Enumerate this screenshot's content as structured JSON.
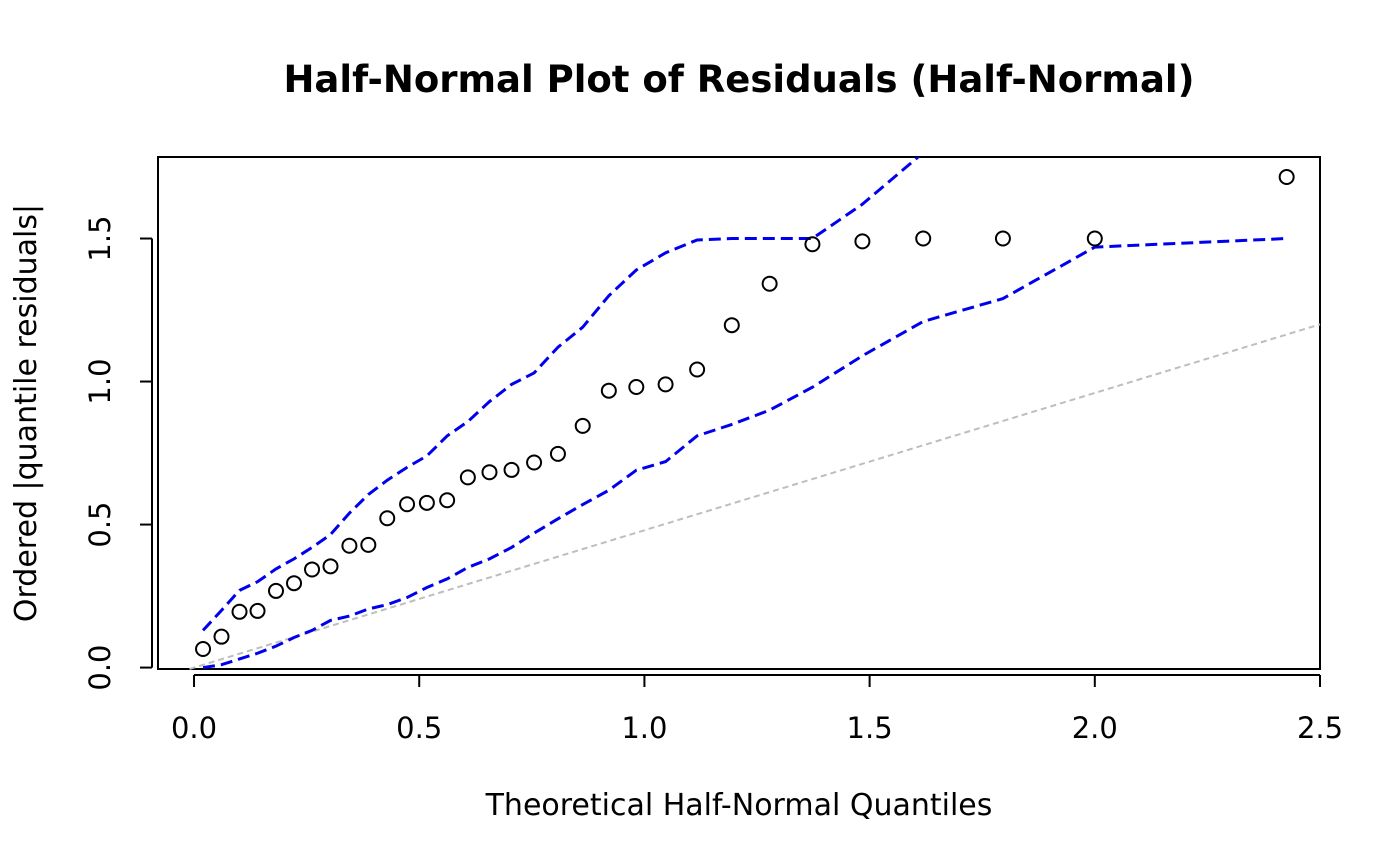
{
  "chart_data": {
    "type": "scatter",
    "title": "Half-Normal Plot of Residuals (Half-Normal)",
    "xlabel": "Theoretical Half-Normal Quantiles",
    "ylabel": "Ordered |quantile residuals|",
    "xlim": [
      -0.08,
      2.5
    ],
    "ylim": [
      -0.005,
      1.785
    ],
    "xticks": [
      0.0,
      0.5,
      1.0,
      1.5,
      2.0,
      2.5
    ],
    "xtick_labels": [
      "0.0",
      "0.5",
      "1.0",
      "1.5",
      "2.0",
      "2.5"
    ],
    "yticks": [
      0.0,
      0.5,
      1.0,
      1.5
    ],
    "ytick_labels": [
      "0.0",
      "0.5",
      "1.0",
      "1.5"
    ],
    "grid": false,
    "colors": {
      "points": "#000000",
      "envelope": "#0000ee",
      "reference": "#bebebe"
    },
    "points": {
      "name": "",
      "x": [
        0.02,
        0.061,
        0.101,
        0.141,
        0.182,
        0.222,
        0.262,
        0.303,
        0.345,
        0.387,
        0.429,
        0.473,
        0.517,
        0.562,
        0.608,
        0.656,
        0.705,
        0.755,
        0.808,
        0.863,
        0.921,
        0.982,
        1.047,
        1.117,
        1.194,
        1.278,
        1.373,
        1.484,
        1.619,
        1.796,
        2.0,
        2.426
      ],
      "y": [
        0.065,
        0.108,
        0.195,
        0.198,
        0.268,
        0.295,
        0.343,
        0.354,
        0.426,
        0.429,
        0.522,
        0.571,
        0.576,
        0.585,
        0.665,
        0.683,
        0.691,
        0.717,
        0.747,
        0.845,
        0.968,
        0.981,
        0.99,
        1.042,
        1.197,
        1.342,
        1.48,
        1.49,
        1.5,
        1.5,
        1.5,
        1.715
      ]
    },
    "envelope_upper": {
      "x": [
        0.02,
        0.061,
        0.101,
        0.141,
        0.182,
        0.222,
        0.262,
        0.303,
        0.345,
        0.387,
        0.429,
        0.473,
        0.517,
        0.562,
        0.608,
        0.656,
        0.705,
        0.755,
        0.808,
        0.863,
        0.921,
        0.982,
        1.047,
        1.117,
        1.194,
        1.278,
        1.373,
        1.484,
        1.619
      ],
      "y": [
        0.13,
        0.2,
        0.27,
        0.3,
        0.345,
        0.38,
        0.42,
        0.465,
        0.54,
        0.605,
        0.655,
        0.7,
        0.74,
        0.81,
        0.86,
        0.93,
        0.99,
        1.03,
        1.12,
        1.19,
        1.3,
        1.39,
        1.45,
        1.495,
        1.5,
        1.5,
        1.5,
        1.62,
        1.8
      ]
    },
    "envelope_lower": {
      "x": [
        0.02,
        0.061,
        0.101,
        0.141,
        0.182,
        0.222,
        0.262,
        0.303,
        0.345,
        0.387,
        0.429,
        0.473,
        0.517,
        0.562,
        0.608,
        0.656,
        0.705,
        0.755,
        0.808,
        0.863,
        0.921,
        0.982,
        1.047,
        1.117,
        1.194,
        1.278,
        1.373,
        1.484,
        1.619,
        1.796,
        2.0,
        2.426
      ],
      "y": [
        0.0,
        0.01,
        0.03,
        0.05,
        0.075,
        0.105,
        0.13,
        0.165,
        0.18,
        0.205,
        0.22,
        0.245,
        0.28,
        0.31,
        0.35,
        0.38,
        0.42,
        0.47,
        0.52,
        0.57,
        0.62,
        0.69,
        0.72,
        0.81,
        0.85,
        0.9,
        0.98,
        1.09,
        1.21,
        1.29,
        1.47,
        1.5
      ]
    },
    "reference_line": {
      "slope": 0.48,
      "intercept": 0.0,
      "x_range": [
        -0.01,
        2.5
      ]
    }
  }
}
